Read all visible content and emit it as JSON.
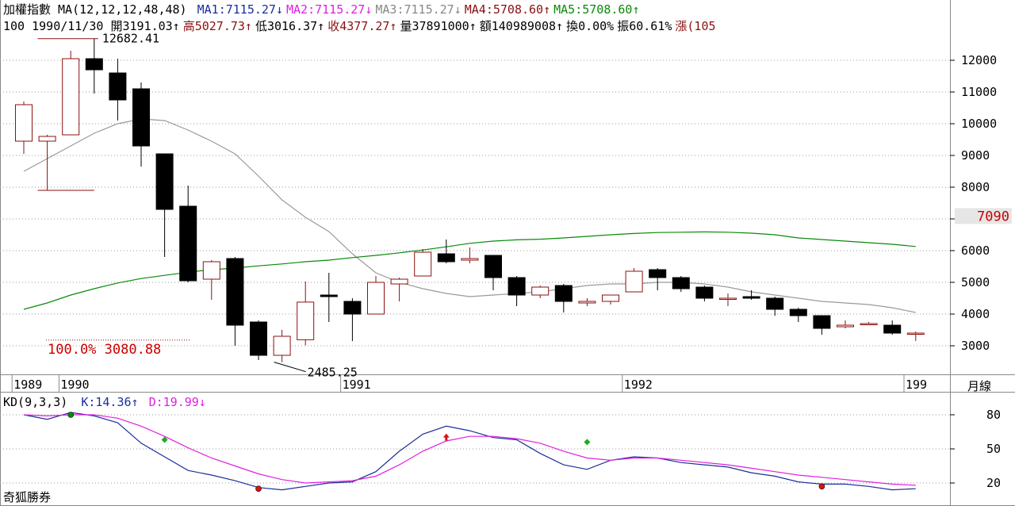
{
  "header": {
    "line1": [
      {
        "text": "加權指數 MA(12,12,12,48,48) ",
        "color": "#000000"
      },
      {
        "text": "MA1:7115.27↓",
        "color": "#1a2f9a"
      },
      {
        "text": "MA2:7115.27↓",
        "color": "#e020e0"
      },
      {
        "text": "MA3:7115.27↓",
        "color": "#888888"
      },
      {
        "text": "MA4:5708.60↑",
        "color": "#8b1010"
      },
      {
        "text": "MA5:5708.60↑",
        "color": "#0a8a0a"
      }
    ],
    "line2": [
      {
        "text": "100 1990/11/30 開3191.03↑",
        "color": "#000000"
      },
      {
        "text": "高5027.73↑",
        "color": "#8b1010"
      },
      {
        "text": "低3016.37↑",
        "color": "#000000"
      },
      {
        "text": "收4377.27↑",
        "color": "#8b1010"
      },
      {
        "text": "量37891000↑",
        "color": "#000000"
      },
      {
        "text": "額140989008↑",
        "color": "#000000"
      },
      {
        "text": "換0.00%",
        "color": "#000000"
      },
      {
        "text": "振60.61%",
        "color": "#000000"
      },
      {
        "text": "漲(105",
        "color": "#8b1010"
      }
    ]
  },
  "colors": {
    "up": "#8b1010",
    "down": "#000000",
    "ma_gray": "#9a9a9a",
    "ma_green": "#0a8a0a",
    "k_line": "#1a2f9a",
    "d_line": "#e020e0",
    "current_price": "#cc0000",
    "grid": "#9a9a9a"
  },
  "chart_data": [
    {
      "type": "candlestick",
      "title": "加權指數",
      "period_label": "月線",
      "ylim": [
        2500,
        12700
      ],
      "yticks": [
        3000,
        4000,
        5000,
        6000,
        7000,
        8000,
        9000,
        10000,
        11000,
        12000
      ],
      "x_labels": [
        {
          "label": "1989",
          "index": 0
        },
        {
          "label": "1990",
          "index": 2
        },
        {
          "label": "1991",
          "index": 14
        },
        {
          "label": "1992",
          "index": 26
        },
        {
          "label": "199",
          "index": 38
        }
      ],
      "current_price": {
        "value": 7090,
        "label": "7090"
      },
      "annotations": [
        {
          "text": "12682.41",
          "value": 12682.41,
          "index": 3
        },
        {
          "text": "2485.25",
          "value": 2485.25,
          "index": 11
        },
        {
          "text": "100.0% 3080.88",
          "value": 3080.88,
          "index": 1
        }
      ],
      "candles": [
        {
          "o": 9450,
          "h": 10700,
          "l": 9050,
          "c": 10600
        },
        {
          "o": 9450,
          "h": 9650,
          "l": 7900,
          "c": 9600
        },
        {
          "o": 9650,
          "h": 12300,
          "l": 9650,
          "c": 12050
        },
        {
          "o": 12050,
          "h": 12682,
          "l": 10950,
          "c": 11700
        },
        {
          "o": 11600,
          "h": 12050,
          "l": 10100,
          "c": 10750
        },
        {
          "o": 11100,
          "h": 11300,
          "l": 8650,
          "c": 9300
        },
        {
          "o": 9050,
          "h": 9050,
          "l": 5800,
          "c": 7300
        },
        {
          "o": 7400,
          "h": 8050,
          "l": 5000,
          "c": 5050
        },
        {
          "o": 5100,
          "h": 5700,
          "l": 4450,
          "c": 5650
        },
        {
          "o": 5750,
          "h": 5800,
          "l": 3000,
          "c": 3650
        },
        {
          "o": 3750,
          "h": 3800,
          "l": 2550,
          "c": 2700
        },
        {
          "o": 2700,
          "h": 3500,
          "l": 2485.25,
          "c": 3300
        },
        {
          "o": 3191.03,
          "h": 5027.73,
          "l": 3016.37,
          "c": 4377.27
        },
        {
          "o": 4600,
          "h": 5300,
          "l": 3750,
          "c": 4550
        },
        {
          "o": 4400,
          "h": 4500,
          "l": 3150,
          "c": 4000
        },
        {
          "o": 4000,
          "h": 5200,
          "l": 4000,
          "c": 5000
        },
        {
          "o": 4950,
          "h": 5150,
          "l": 4400,
          "c": 5100
        },
        {
          "o": 5200,
          "h": 6050,
          "l": 5200,
          "c": 5950
        },
        {
          "o": 5900,
          "h": 6350,
          "l": 5600,
          "c": 5650
        },
        {
          "o": 5700,
          "h": 6100,
          "l": 5600,
          "c": 5750
        },
        {
          "o": 5850,
          "h": 5850,
          "l": 4750,
          "c": 5150
        },
        {
          "o": 5150,
          "h": 5200,
          "l": 4250,
          "c": 4600
        },
        {
          "o": 4600,
          "h": 4900,
          "l": 4500,
          "c": 4850
        },
        {
          "o": 4900,
          "h": 4950,
          "l": 4050,
          "c": 4400
        },
        {
          "o": 4350,
          "h": 4500,
          "l": 4250,
          "c": 4400
        },
        {
          "o": 4400,
          "h": 4600,
          "l": 4300,
          "c": 4600
        },
        {
          "o": 4700,
          "h": 5450,
          "l": 4700,
          "c": 5350
        },
        {
          "o": 5400,
          "h": 5450,
          "l": 4750,
          "c": 5150
        },
        {
          "o": 5150,
          "h": 5200,
          "l": 4700,
          "c": 4800
        },
        {
          "o": 4850,
          "h": 4900,
          "l": 4400,
          "c": 4500
        },
        {
          "o": 4500,
          "h": 4650,
          "l": 4250,
          "c": 4500
        },
        {
          "o": 4550,
          "h": 4750,
          "l": 4450,
          "c": 4500
        },
        {
          "o": 4500,
          "h": 4550,
          "l": 3950,
          "c": 4150
        },
        {
          "o": 4150,
          "h": 4200,
          "l": 3750,
          "c": 3950
        },
        {
          "o": 3950,
          "h": 3950,
          "l": 3350,
          "c": 3550
        },
        {
          "o": 3600,
          "h": 3800,
          "l": 3550,
          "c": 3650
        },
        {
          "o": 3700,
          "h": 3750,
          "l": 3650,
          "c": 3700
        },
        {
          "o": 3650,
          "h": 3800,
          "l": 3350,
          "c": 3400
        },
        {
          "o": 3400,
          "h": 3450,
          "l": 3150,
          "c": 3400
        }
      ],
      "series": [
        {
          "name": "MA1",
          "values": [
            8500,
            8900,
            9300,
            9700,
            10000,
            10150,
            10100,
            9800,
            9450,
            9050,
            8350,
            7600,
            7050,
            6600,
            5900,
            5300,
            5000,
            4800,
            4650,
            4550,
            4600,
            4650,
            4700,
            4800,
            4900,
            4950,
            4950,
            5000,
            5000,
            4950,
            4850,
            4700,
            4600,
            4500,
            4400,
            4350,
            4300,
            4200,
            4050
          ]
        },
        {
          "name": "MA4",
          "values": [
            4150,
            4350,
            4600,
            4800,
            4980,
            5120,
            5220,
            5320,
            5400,
            5450,
            5520,
            5580,
            5650,
            5700,
            5780,
            5850,
            5930,
            6020,
            6120,
            6230,
            6300,
            6340,
            6360,
            6400,
            6450,
            6500,
            6540,
            6570,
            6580,
            6590,
            6580,
            6550,
            6500,
            6400,
            6350,
            6300,
            6250,
            6200,
            6130
          ]
        }
      ]
    },
    {
      "type": "line",
      "title": "KD(9,3,3)",
      "ylim": [
        10,
        90
      ],
      "yticks": [
        20,
        50,
        80
      ],
      "legend": [
        "K:14.36↑",
        "D:19.99↓"
      ],
      "series": [
        {
          "name": "K",
          "values": [
            80,
            76,
            82,
            79,
            73,
            55,
            43,
            31,
            27,
            22,
            16,
            14,
            17,
            20,
            21,
            30,
            48,
            63,
            70,
            66,
            60,
            58,
            46,
            36,
            32,
            40,
            43,
            42,
            38,
            36,
            34,
            29,
            26,
            21,
            19,
            19,
            17,
            14,
            15
          ]
        },
        {
          "name": "D",
          "values": [
            80,
            79,
            80,
            80,
            77,
            70,
            61,
            51,
            42,
            35,
            28,
            23,
            20,
            21,
            22,
            26,
            36,
            48,
            57,
            61,
            61,
            59,
            55,
            48,
            42,
            40,
            42,
            42,
            40,
            38,
            36,
            33,
            30,
            27,
            25,
            23,
            21,
            19,
            18
          ]
        }
      ],
      "signals": [
        {
          "index": 2,
          "value": 80,
          "kind": "green-dot"
        },
        {
          "index": 6,
          "value": 58,
          "kind": "green-diamond"
        },
        {
          "index": 10,
          "value": 15,
          "kind": "red-dot"
        },
        {
          "index": 18,
          "value": 60,
          "kind": "red-arrow"
        },
        {
          "index": 24,
          "value": 56,
          "kind": "green-diamond"
        },
        {
          "index": 34,
          "value": 17,
          "kind": "red-dot"
        }
      ]
    }
  ],
  "footer": {
    "broker": "奇狐勝券"
  }
}
